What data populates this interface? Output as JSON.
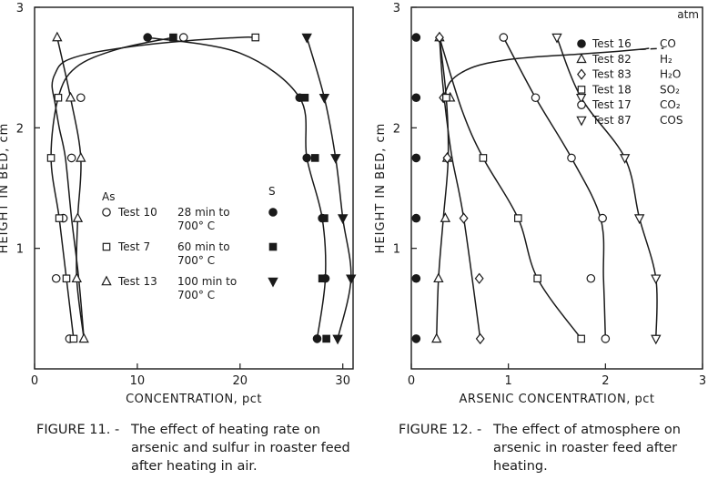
{
  "figures": [
    {
      "caption_label": "FIGURE 11. -",
      "caption_text": "The effect of heating rate on arsenic and sulfur in roaster feed after heating in air."
    },
    {
      "caption_label": "FIGURE 12. -",
      "caption_text": "The effect of atmosphere on arsenic in roaster feed after heating."
    }
  ],
  "chart_data": [
    {
      "type": "scatter",
      "title": "",
      "xlabel": "CONCENTRATION, pct",
      "ylabel": "HEIGHT IN BED, cm",
      "xlim": [
        0,
        31
      ],
      "ylim": [
        0,
        3
      ],
      "xticks": [
        0,
        10,
        20,
        30
      ],
      "yticks": [
        1,
        2,
        3
      ],
      "legend_col_labels": [
        "As",
        "S"
      ],
      "legend_placement": "center",
      "legend_entries": [
        {
          "test": "Test 10",
          "condition": "28 min to",
          "condition2": "700° C"
        },
        {
          "test": "Test 7",
          "condition": "60 min to",
          "condition2": "700° C"
        },
        {
          "test": "Test 13",
          "condition": "100 min to",
          "condition2": "700° C"
        }
      ],
      "series": [
        {
          "test": "Test 10",
          "element": "As",
          "marker": "circle-open",
          "x": [
            4.5,
            3.6,
            2.8,
            2.1,
            3.4,
            14.5
          ],
          "y": [
            2.25,
            1.75,
            1.25,
            0.75,
            0.25,
            2.75
          ]
        },
        {
          "test": "Test 7",
          "element": "As",
          "marker": "square-open",
          "x": [
            2.3,
            1.6,
            2.4,
            3.1,
            3.8,
            21.5
          ],
          "y": [
            2.25,
            1.75,
            1.25,
            0.75,
            0.25,
            2.75
          ]
        },
        {
          "test": "Test 13",
          "element": "As",
          "marker": "triangle-open",
          "x": [
            2.2,
            3.5,
            4.5,
            4.2,
            4.1,
            4.8
          ],
          "y": [
            2.75,
            2.25,
            1.75,
            1.25,
            0.75,
            0.25
          ]
        },
        {
          "test": "Test 10",
          "element": "S",
          "marker": "circle-filled",
          "x": [
            11.0,
            25.8,
            26.5,
            28.0,
            28.3,
            27.5
          ],
          "y": [
            2.75,
            2.25,
            1.75,
            1.25,
            0.75,
            0.25
          ]
        },
        {
          "test": "Test 7",
          "element": "S",
          "marker": "square-filled",
          "x": [
            13.5,
            26.3,
            27.3,
            28.2,
            28.0,
            28.4
          ],
          "y": [
            2.75,
            2.25,
            1.75,
            1.25,
            0.75,
            0.25
          ]
        },
        {
          "test": "Test 13",
          "element": "S",
          "marker": "triangle-filled",
          "x": [
            26.5,
            28.2,
            29.3,
            30.0,
            30.8,
            29.5
          ],
          "y": [
            2.75,
            2.25,
            1.75,
            1.25,
            0.75,
            0.25
          ]
        }
      ],
      "curves": [
        {
          "kind": "As-envelope",
          "x": [
            4.8,
            4.3,
            3.6,
            3.0,
            2.4,
            2.0,
            1.7,
            2.0,
            2.9,
            5.5,
            10.0,
            14.5,
            20.0,
            21.5
          ],
          "y": [
            0.25,
            0.75,
            1.25,
            1.75,
            2.0,
            2.2,
            2.35,
            2.45,
            2.55,
            2.62,
            2.68,
            2.72,
            2.75,
            2.75
          ]
        },
        {
          "kind": "As-inner",
          "x": [
            3.8,
            3.1,
            2.4,
            1.6,
            2.3,
            4.0,
            8.0,
            13.5
          ],
          "y": [
            0.25,
            0.75,
            1.25,
            1.75,
            2.25,
            2.5,
            2.65,
            2.75
          ]
        },
        {
          "kind": "As-test13",
          "x": [
            4.8,
            4.1,
            4.2,
            4.5,
            3.5,
            2.2
          ],
          "y": [
            0.25,
            0.75,
            1.25,
            1.75,
            2.25,
            2.75
          ]
        },
        {
          "kind": "S-outer",
          "x": [
            29.5,
            30.8,
            30.0,
            29.3,
            28.2,
            26.5
          ],
          "y": [
            0.25,
            0.75,
            1.25,
            1.75,
            2.25,
            2.75
          ]
        },
        {
          "kind": "S-inner",
          "x": [
            27.5,
            28.3,
            28.0,
            26.5,
            25.8,
            20.0,
            11.0
          ],
          "y": [
            0.25,
            0.75,
            1.25,
            1.75,
            2.25,
            2.62,
            2.75
          ]
        }
      ]
    },
    {
      "type": "scatter",
      "title": "",
      "xlabel": "ARSENIC CONCENTRATION, pct",
      "ylabel": "HEIGHT IN BED, cm",
      "xlim": [
        0,
        3
      ],
      "ylim": [
        0,
        3
      ],
      "xticks": [
        0,
        1,
        2,
        3
      ],
      "yticks": [
        1,
        2,
        3
      ],
      "legend_header": "atm",
      "legend_placement": "top-right",
      "legend_entries": [
        {
          "test": "Test 16",
          "atm": "CO",
          "marker": "circle-filled"
        },
        {
          "test": "Test 82",
          "atm": "H₂",
          "marker": "triangle-open"
        },
        {
          "test": "Test 83",
          "atm": "H₂O",
          "marker": "diamond-open"
        },
        {
          "test": "Test 18",
          "atm": "SO₂",
          "marker": "square-open"
        },
        {
          "test": "Test 17",
          "atm": "CO₂",
          "marker": "circle-open"
        },
        {
          "test": "Test 87",
          "atm": "COS",
          "marker": "triangle-open-down"
        }
      ],
      "series": [
        {
          "test": "Test 16",
          "atm": "CO",
          "marker": "circle-filled",
          "x": [
            0.05,
            0.05,
            0.05,
            0.05,
            0.05,
            0.05
          ],
          "y": [
            2.75,
            2.25,
            1.75,
            1.25,
            0.75,
            0.25
          ]
        },
        {
          "test": "Test 82",
          "atm": "H₂",
          "marker": "triangle-open",
          "x": [
            0.29,
            0.4,
            0.37,
            0.35,
            0.28,
            0.26
          ],
          "y": [
            2.75,
            2.25,
            1.75,
            1.25,
            0.75,
            0.25
          ]
        },
        {
          "test": "Test 83",
          "atm": "H₂O",
          "marker": "diamond-open",
          "x": [
            0.29,
            0.33,
            0.37,
            0.54,
            0.7,
            0.71
          ],
          "y": [
            2.75,
            2.25,
            1.75,
            1.25,
            0.75,
            0.25
          ]
        },
        {
          "test": "Test 18",
          "atm": "SO₂",
          "marker": "square-open",
          "x": [
            0.36,
            0.36,
            0.74,
            1.1,
            1.3,
            1.75
          ],
          "y": [
            2.25,
            2.25,
            1.75,
            1.25,
            0.75,
            0.25
          ]
        },
        {
          "test": "Test 17",
          "atm": "CO₂",
          "marker": "circle-open",
          "x": [
            0.95,
            1.28,
            1.65,
            1.97,
            1.85,
            2.0
          ],
          "y": [
            2.75,
            2.25,
            1.75,
            1.25,
            0.75,
            0.25
          ]
        },
        {
          "test": "Test 87",
          "atm": "COS",
          "marker": "triangle-open-down",
          "x": [
            1.5,
            1.75,
            2.2,
            2.35,
            2.52,
            2.52
          ],
          "y": [
            2.75,
            2.25,
            1.75,
            1.25,
            0.75,
            0.25
          ]
        }
      ],
      "curves": [
        {
          "kind": "H2O",
          "x": [
            0.71,
            0.54,
            0.42,
            0.36,
            0.32,
            0.29
          ],
          "y": [
            0.25,
            1.25,
            1.75,
            2.1,
            2.4,
            2.75
          ]
        },
        {
          "kind": "H2",
          "x": [
            0.26,
            0.28,
            0.33,
            0.38,
            0.36,
            0.29
          ],
          "y": [
            0.25,
            0.75,
            1.25,
            1.75,
            2.25,
            2.75
          ]
        },
        {
          "kind": "SO2",
          "x": [
            1.75,
            1.3,
            1.1,
            0.74,
            0.52,
            0.29
          ],
          "y": [
            0.25,
            0.75,
            1.25,
            1.75,
            2.15,
            2.75
          ]
        },
        {
          "kind": "CO2",
          "x": [
            2.0,
            1.98,
            1.95,
            1.65,
            1.28,
            0.95
          ],
          "y": [
            0.25,
            0.75,
            1.25,
            1.75,
            2.25,
            2.75
          ]
        },
        {
          "kind": "COS",
          "x": [
            2.52,
            2.52,
            2.35,
            2.2,
            1.75,
            1.5
          ],
          "y": [
            0.25,
            0.75,
            1.25,
            1.75,
            2.25,
            2.75
          ]
        },
        {
          "kind": "top-envelope",
          "x": [
            0.34,
            0.4,
            0.52,
            0.7,
            0.95,
            1.3,
            1.7,
            2.05,
            2.35,
            2.45
          ],
          "y": [
            2.27,
            2.38,
            2.46,
            2.52,
            2.56,
            2.59,
            2.61,
            2.63,
            2.65,
            2.66
          ]
        },
        {
          "kind": "top-envelope-dashed",
          "x": [
            2.35,
            2.6
          ],
          "y": [
            2.65,
            2.66
          ]
        }
      ]
    }
  ]
}
